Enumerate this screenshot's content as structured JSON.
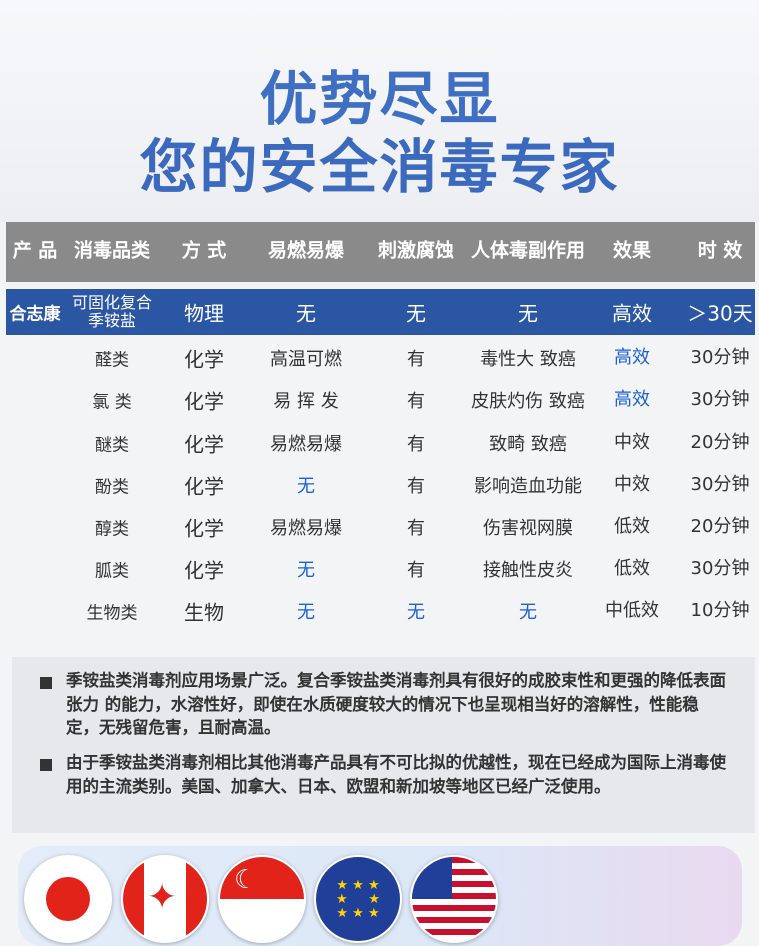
{
  "title": {
    "line1": "优势尽显",
    "line2": "您的安全消毒专家"
  },
  "header": [
    "产 品",
    "消毒品类",
    "方 式",
    "易燃易爆",
    "刺激腐蚀",
    "人体毒副作用",
    "效果",
    "时 效"
  ],
  "highlight_row": [
    "合志康",
    "可固化复合季铵盐",
    "物理",
    "无",
    "无",
    "无",
    "高效",
    "＞30天"
  ],
  "rows": [
    {
      "cells": [
        "醛类",
        "化学",
        "高温可燃",
        "有",
        "毒性大 致癌",
        "高效",
        "30分钟"
      ],
      "blue": [
        5
      ]
    },
    {
      "cells": [
        "氯 类",
        "化学",
        "易 挥 发",
        "有",
        "皮肤灼伤 致癌",
        "高效",
        "30分钟"
      ],
      "blue": [
        5
      ]
    },
    {
      "cells": [
        "醚类",
        "化学",
        "易燃易爆",
        "有",
        "致畸 致癌",
        "中效",
        "20分钟"
      ],
      "blue": []
    },
    {
      "cells": [
        "酚类",
        "化学",
        "无",
        "有",
        "影响造血功能",
        "中效",
        "30分钟"
      ],
      "blue": [
        2
      ]
    },
    {
      "cells": [
        "醇类",
        "化学",
        "易燃易爆",
        "有",
        "伤害视网膜",
        "低效",
        "20分钟"
      ],
      "blue": []
    },
    {
      "cells": [
        "胍类",
        "化学",
        "无",
        "有",
        "接触性皮炎",
        "低效",
        "30分钟"
      ],
      "blue": [
        2
      ]
    },
    {
      "cells": [
        "生物类",
        "生物",
        "无",
        "无",
        "无",
        "中低效",
        "10分钟"
      ],
      "blue": [
        2,
        3,
        4
      ]
    }
  ],
  "notes": [
    "季铵盐类消毒剂应用场景广泛。复合季铵盐类消毒剂具有很好的成胶束性和更强的降低表面张力 的能力，水溶性好，即使在水质硬度较大的情况下也呈现相当好的溶解性，性能稳定，无残留危害，且耐高温。",
    "由于季铵盐类消毒剂相比其他消毒产品具有不可比拟的优越性，现在已经成为国际上消毒使用的主流类别。美国、加拿大、日本、欧盟和新加坡等地区已经广泛使用。"
  ],
  "flags": [
    "japan-flag",
    "canada-flag",
    "singapore-flag",
    "eu-flag",
    "usa-flag"
  ],
  "colors": {
    "header_bg": "#8a8a8a",
    "highlight_bg": "#2b56a4",
    "title": "#3f6fc2",
    "blue_text": "#1a5fd6"
  }
}
